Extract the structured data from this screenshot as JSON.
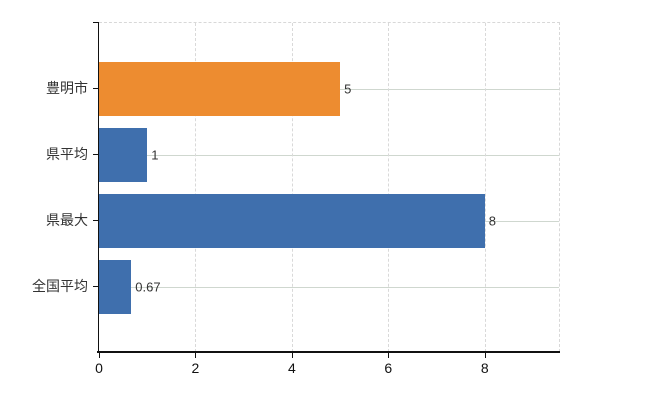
{
  "chart_data": {
    "type": "bar",
    "orientation": "horizontal",
    "title": "",
    "categories": [
      "豊明市",
      "県平均",
      "県最大",
      "全国平均"
    ],
    "values": [
      5,
      1,
      8,
      0.67
    ],
    "value_labels": [
      "5",
      "1",
      "8",
      "0.67"
    ],
    "bar_colors": [
      "#ED8C30",
      "#3F6FAD",
      "#3F6FAD",
      "#3F6FAD"
    ],
    "x_ticks": [
      0,
      2,
      4,
      6,
      8
    ],
    "x_tick_labels": [
      "0",
      "2",
      "4",
      "6",
      "8"
    ],
    "xlim": [
      0,
      9.56
    ],
    "grid": true,
    "legend": false,
    "colors": {
      "accent_orange": "#ED8C30",
      "accent_blue": "#3F6FAD",
      "grid_solid": "#cfd7cf",
      "grid_dashed": "#d9d9d9",
      "axis": "#111111",
      "text": "#333333",
      "background": "#ffffff"
    }
  }
}
